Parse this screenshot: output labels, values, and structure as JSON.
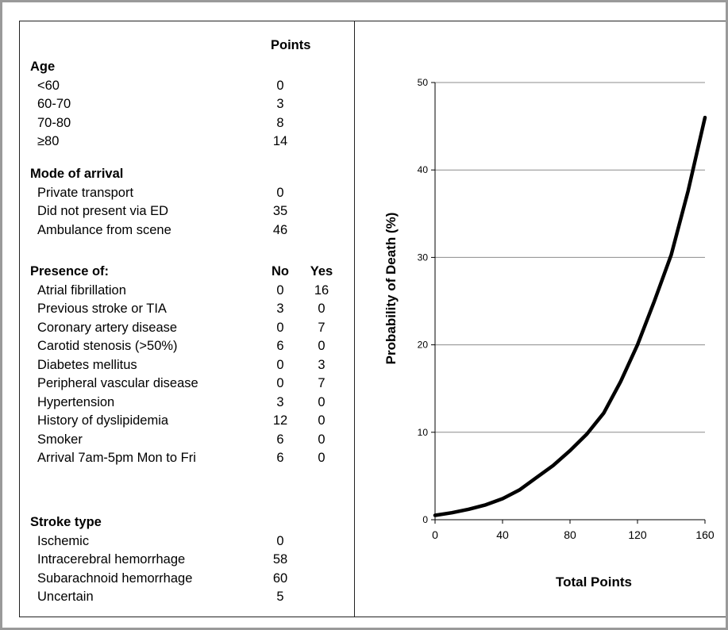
{
  "table": {
    "header_points": "Points",
    "sections": [
      {
        "title": "Age",
        "no_label": "",
        "yes_label": "",
        "rows": [
          {
            "label": "<60",
            "points": "0"
          },
          {
            "label": "60-70",
            "points": "3"
          },
          {
            "label": "70-80",
            "points": "8"
          },
          {
            "label": "≥80",
            "points": "14"
          }
        ]
      },
      {
        "title": "Mode of arrival",
        "no_label": "",
        "yes_label": "",
        "rows": [
          {
            "label": "Private transport",
            "points": "0"
          },
          {
            "label": "Did not present via ED",
            "points": "35"
          },
          {
            "label": "Ambulance from scene",
            "points": "46"
          }
        ]
      },
      {
        "title": "Presence of:",
        "no_label": "No",
        "yes_label": "Yes",
        "rows": [
          {
            "label": "Atrial fibrillation",
            "no": "0",
            "yes": "16"
          },
          {
            "label": "Previous stroke or TIA",
            "no": "3",
            "yes": "0"
          },
          {
            "label": "Coronary artery disease",
            "no": "0",
            "yes": "7"
          },
          {
            "label": "Carotid stenosis (>50%)",
            "no": "6",
            "yes": "0"
          },
          {
            "label": "Diabetes mellitus",
            "no": "0",
            "yes": "3"
          },
          {
            "label": "Peripheral vascular disease",
            "no": "0",
            "yes": "7"
          },
          {
            "label": "Hypertension",
            "no": "3",
            "yes": "0"
          },
          {
            "label": "History of dyslipidemia",
            "no": "12",
            "yes": "0"
          },
          {
            "label": "Smoker",
            "no": "6",
            "yes": "0"
          },
          {
            "label": "Arrival 7am-5pm Mon to Fri",
            "no": "6",
            "yes": "0"
          }
        ]
      },
      {
        "title": "Stroke type",
        "no_label": "",
        "yes_label": "",
        "rows": [
          {
            "label": "Ischemic",
            "points": "0"
          },
          {
            "label": "Intracerebral hemorrhage",
            "points": "58"
          },
          {
            "label": "Subarachnoid hemorrhage",
            "points": "60"
          },
          {
            "label": "Uncertain",
            "points": "5"
          }
        ]
      }
    ]
  },
  "chart_data": {
    "type": "line",
    "title": "",
    "xlabel": "Total Points",
    "ylabel": "Probability of Death (%)",
    "xlim": [
      0,
      160
    ],
    "ylim": [
      0,
      50
    ],
    "xticks": [
      "0",
      "40",
      "80",
      "120",
      "160"
    ],
    "yticks": [
      "0",
      "10",
      "20",
      "30",
      "40",
      "50"
    ],
    "grid": "horizontal",
    "series": [
      {
        "x": [
          0,
          10,
          20,
          30,
          40,
          50,
          60,
          70,
          80,
          90,
          100,
          110,
          120,
          130,
          140,
          150,
          160
        ],
        "y": [
          0.5,
          0.8,
          1.2,
          1.7,
          2.4,
          3.4,
          4.8,
          6.2,
          7.9,
          9.8,
          12.2,
          15.8,
          20.0,
          25.0,
          30.3,
          37.6,
          46.0
        ]
      }
    ]
  }
}
